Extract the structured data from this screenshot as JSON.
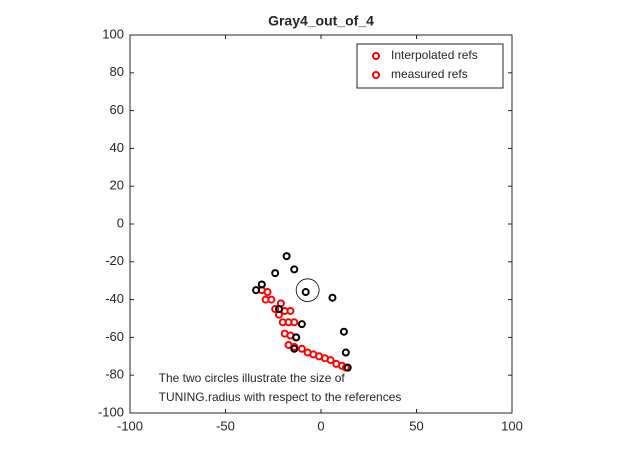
{
  "chart_data": {
    "type": "scatter",
    "title": "Gray4_out_of_4",
    "xlim": [
      -100,
      100
    ],
    "ylim": [
      -100,
      100
    ],
    "xticks": [
      -100,
      -50,
      0,
      50,
      100
    ],
    "yticks": [
      -100,
      -80,
      -60,
      -40,
      -20,
      0,
      20,
      40,
      60,
      80,
      100
    ],
    "legend": "upper right",
    "series": [
      {
        "name": "Interpolated refs",
        "color": "#ff0000",
        "legend_color": "#ff0000",
        "x": [
          -31,
          -28,
          -29,
          -26,
          -24,
          -21,
          -19,
          -16,
          -22,
          -20,
          -17,
          -14,
          -19,
          -16,
          -13,
          -17,
          -14,
          -10,
          -7,
          -4,
          -1,
          2,
          5,
          8,
          11,
          13
        ],
        "y": [
          -35,
          -36,
          -40,
          -40,
          -45,
          -42,
          -46,
          -46,
          -48,
          -52,
          -52,
          -52,
          -58,
          -59,
          -60,
          -64,
          -65,
          -66,
          -68,
          -69,
          -70,
          -71,
          -72,
          -74,
          -75,
          -76
        ]
      },
      {
        "name": "measured refs",
        "color": "#000000",
        "legend_color": "#ff0000",
        "x": [
          -18,
          -24,
          -14,
          -31,
          -34,
          -8,
          6,
          -22,
          -10,
          12,
          -13,
          -14,
          13,
          14
        ],
        "y": [
          -17,
          -26,
          -24,
          -32,
          -35,
          -36,
          -39,
          -45,
          -53,
          -57,
          -60,
          -66,
          -68,
          -76
        ]
      }
    ],
    "circle": {
      "x": -7,
      "y": -35,
      "r": 6
    },
    "annotations": [
      {
        "text": "The two circles illustrate the size of",
        "x": -85,
        "y": -82
      },
      {
        "text": "TUNING.radius with respect to the references",
        "x": -85,
        "y": -92
      }
    ]
  }
}
